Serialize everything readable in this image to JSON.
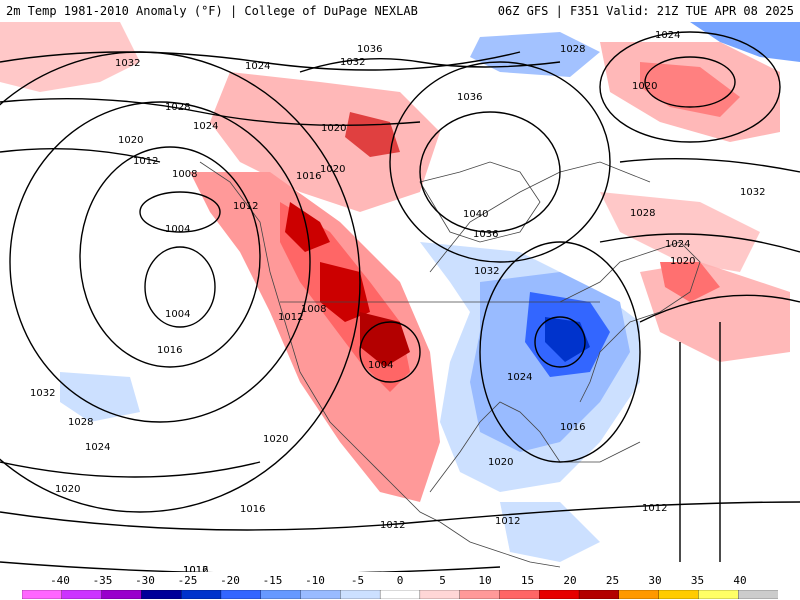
{
  "header": {
    "title_left": "2m Temp 1981-2010 Anomaly (°F) | College of DuPage NEXLAB",
    "title_right": "06Z GFS | F351 Valid: 21Z TUE APR 08 2025"
  },
  "legend": {
    "ticks": [
      "-40",
      "-35",
      "-30",
      "-25",
      "-20",
      "-15",
      "-10",
      "-5",
      "0",
      "5",
      "10",
      "15",
      "20",
      "25",
      "30",
      "35",
      "40"
    ],
    "colors": [
      "#ff66ff",
      "#cc33ff",
      "#9900cc",
      "#000099",
      "#0033cc",
      "#3366ff",
      "#6699ff",
      "#99bbff",
      "#cce0ff",
      "#ffffff",
      "#ffd6d6",
      "#ff9999",
      "#ff6666",
      "#e60000",
      "#b30000",
      "#ff9900",
      "#ffcc00",
      "#ffff66",
      "#cccccc"
    ]
  },
  "isobars": [
    {
      "label": "1032"
    },
    {
      "label": "1024"
    },
    {
      "label": "1032"
    },
    {
      "label": "1036"
    },
    {
      "label": "1028"
    },
    {
      "label": "1024"
    },
    {
      "label": "1020"
    },
    {
      "label": "1028"
    },
    {
      "label": "1024"
    },
    {
      "label": "1020"
    },
    {
      "label": "1036"
    },
    {
      "label": "1020"
    },
    {
      "label": "1012"
    },
    {
      "label": "1016"
    },
    {
      "label": "1020"
    },
    {
      "label": "1008"
    },
    {
      "label": "1012"
    },
    {
      "label": "1040"
    },
    {
      "label": "1028"
    },
    {
      "label": "1032"
    },
    {
      "label": "1004"
    },
    {
      "label": "1036"
    },
    {
      "label": "1024"
    },
    {
      "label": "1020"
    },
    {
      "label": "1032"
    },
    {
      "label": "1004"
    },
    {
      "label": "1012"
    },
    {
      "label": "1008"
    },
    {
      "label": "1016"
    },
    {
      "label": "1004"
    },
    {
      "label": "1024"
    },
    {
      "label": "1016"
    },
    {
      "label": "1032"
    },
    {
      "label": "1028"
    },
    {
      "label": "1024"
    },
    {
      "label": "1020"
    },
    {
      "label": "1020"
    },
    {
      "label": "1020"
    },
    {
      "label": "1016"
    },
    {
      "label": "1012"
    },
    {
      "label": "1012"
    },
    {
      "label": "1012"
    },
    {
      "label": "1012"
    },
    {
      "label": "1016"
    }
  ]
}
